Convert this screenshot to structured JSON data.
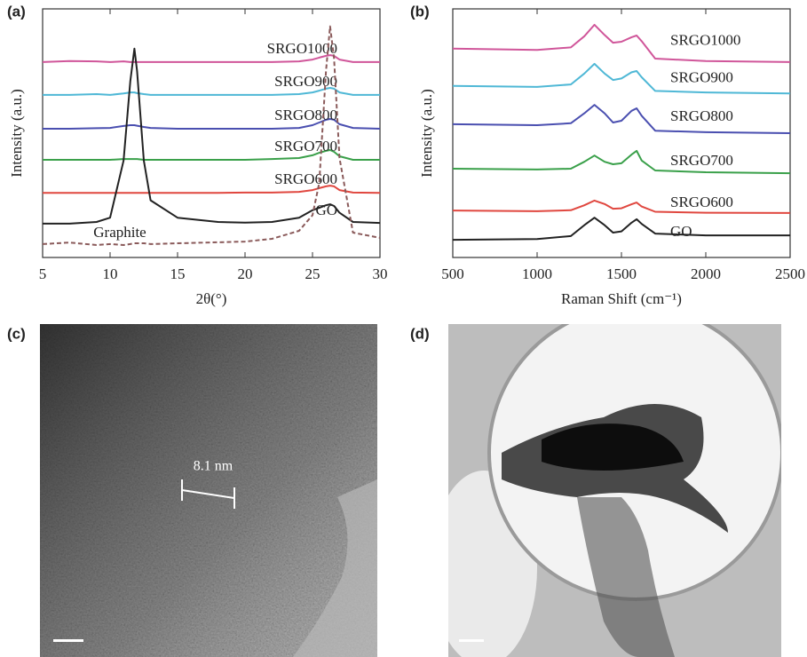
{
  "chart_data": [
    {
      "type": "line",
      "label": "(a)",
      "xlabel": "2θ(°)",
      "ylabel": "Intensity (a.u.)",
      "x": [
        5,
        7,
        9,
        10,
        11,
        11.5,
        11.8,
        12,
        12.5,
        13,
        15,
        18,
        20,
        22,
        24,
        25,
        25.5,
        26,
        26.3,
        26.6,
        27,
        28,
        30
      ],
      "xlim": [
        5,
        30
      ],
      "xticks": [
        5,
        10,
        15,
        20,
        25,
        30
      ],
      "ylim": [
        0,
        100
      ],
      "series": [
        {
          "name": "SRGO1000",
          "color": "#d0569a",
          "values": [
            78.6,
            79,
            78.9,
            78.6,
            78.9,
            78.6,
            78.6,
            78.6,
            78.6,
            78.6,
            78.6,
            78.6,
            78.6,
            78.6,
            78.9,
            79.6,
            80.4,
            81.1,
            81.4,
            81.1,
            79.6,
            78.6,
            78.6
          ]
        },
        {
          "name": "SRGO900",
          "color": "#4fb8d6",
          "values": [
            65.4,
            65.4,
            65.7,
            65.4,
            66,
            66.4,
            66.4,
            66.1,
            65.7,
            65.4,
            65.4,
            65.4,
            65.4,
            65.4,
            65.7,
            66.4,
            67.1,
            67.9,
            68.2,
            67.9,
            66.4,
            65.4,
            65.4
          ]
        },
        {
          "name": "SRGO800",
          "color": "#4a4fb0",
          "values": [
            51.8,
            51.8,
            52,
            52.1,
            52.9,
            53.2,
            53.2,
            53,
            52.5,
            52.1,
            51.8,
            51.8,
            51.8,
            51.8,
            52.1,
            53.2,
            54.3,
            55.4,
            55.7,
            55.4,
            53.6,
            52.1,
            51.8
          ]
        },
        {
          "name": "SRGO700",
          "color": "#3aa04a",
          "values": [
            39.3,
            39.3,
            39.3,
            39.3,
            39.6,
            39.6,
            39.6,
            39.6,
            39.3,
            39.3,
            39.3,
            39.3,
            39.3,
            39.6,
            40,
            41.1,
            42.1,
            42.9,
            43.2,
            42.5,
            40.7,
            39.3,
            39.3
          ]
        },
        {
          "name": "SRGO600",
          "color": "#e0473f",
          "values": [
            26,
            26,
            26,
            26,
            26,
            26,
            26,
            26,
            26,
            26,
            26,
            26,
            26.1,
            26.1,
            26.4,
            27.1,
            27.9,
            28.6,
            28.9,
            28.6,
            27.1,
            26.1,
            26
          ]
        },
        {
          "name": "GO",
          "color": "#222222",
          "values": [
            13.6,
            13.6,
            14.3,
            16,
            39,
            71,
            84,
            75,
            39,
            23,
            16,
            14.3,
            14,
            14.3,
            16,
            19,
            20,
            21,
            21.4,
            20.7,
            18,
            14.3,
            13.9
          ]
        },
        {
          "name": "Graphite",
          "color": "#8a5a5a",
          "dashed": true,
          "values": [
            5.4,
            6,
            5,
            5.4,
            5,
            5.4,
            5.7,
            5.7,
            5.7,
            5.4,
            5.7,
            6.1,
            6.4,
            7.5,
            10.7,
            17,
            30,
            75,
            93,
            80,
            40,
            10,
            7.9
          ]
        }
      ]
    },
    {
      "type": "line",
      "label": "(b)",
      "xlabel": "Raman Shift (cm⁻¹)",
      "ylabel": "Intensity (a.u.)",
      "x": [
        500,
        1000,
        1200,
        1280,
        1340,
        1400,
        1450,
        1500,
        1560,
        1590,
        1620,
        1700,
        2000,
        2500
      ],
      "xlim": [
        500,
        2500
      ],
      "xticks": [
        500,
        1000,
        1500,
        2000,
        2500
      ],
      "ylim": [
        0,
        100
      ],
      "series": [
        {
          "name": "SRGO1000",
          "color": "#d0569a",
          "values": [
            84,
            83.5,
            84.5,
            89,
            93.6,
            89.5,
            86.4,
            86.8,
            88.6,
            89.3,
            87,
            80,
            79,
            78.6
          ]
        },
        {
          "name": "SRGO900",
          "color": "#4fb8d6",
          "values": [
            69,
            68.6,
            69.6,
            74,
            77.9,
            74,
            71.4,
            72,
            74.5,
            75,
            72.5,
            67,
            66.4,
            66
          ]
        },
        {
          "name": "SRGO800",
          "color": "#4a4fb0",
          "values": [
            53.6,
            53.2,
            54,
            58,
            61.4,
            58,
            54.3,
            55,
            59,
            60,
            57,
            51,
            50.4,
            50
          ]
        },
        {
          "name": "SRGO700",
          "color": "#3aa04a",
          "values": [
            35.7,
            35.4,
            35.7,
            38.5,
            41,
            38.5,
            37.5,
            37.9,
            41.4,
            42.9,
            39,
            35,
            34.3,
            33.9
          ]
        },
        {
          "name": "SRGO600",
          "color": "#e0473f",
          "values": [
            18.9,
            18.6,
            19,
            21,
            22.9,
            21.5,
            19.6,
            19.8,
            21.4,
            22.1,
            20.5,
            18.4,
            18,
            17.9
          ]
        },
        {
          "name": "GO",
          "color": "#222222",
          "values": [
            7.1,
            7.4,
            8.6,
            13,
            16,
            13,
            10,
            10.5,
            14,
            15.4,
            13.5,
            9.6,
            8.9,
            8.9
          ]
        }
      ]
    }
  ],
  "images": [
    {
      "label": "(c)",
      "annotation": "8.1 nm"
    },
    {
      "label": "(d)"
    }
  ]
}
